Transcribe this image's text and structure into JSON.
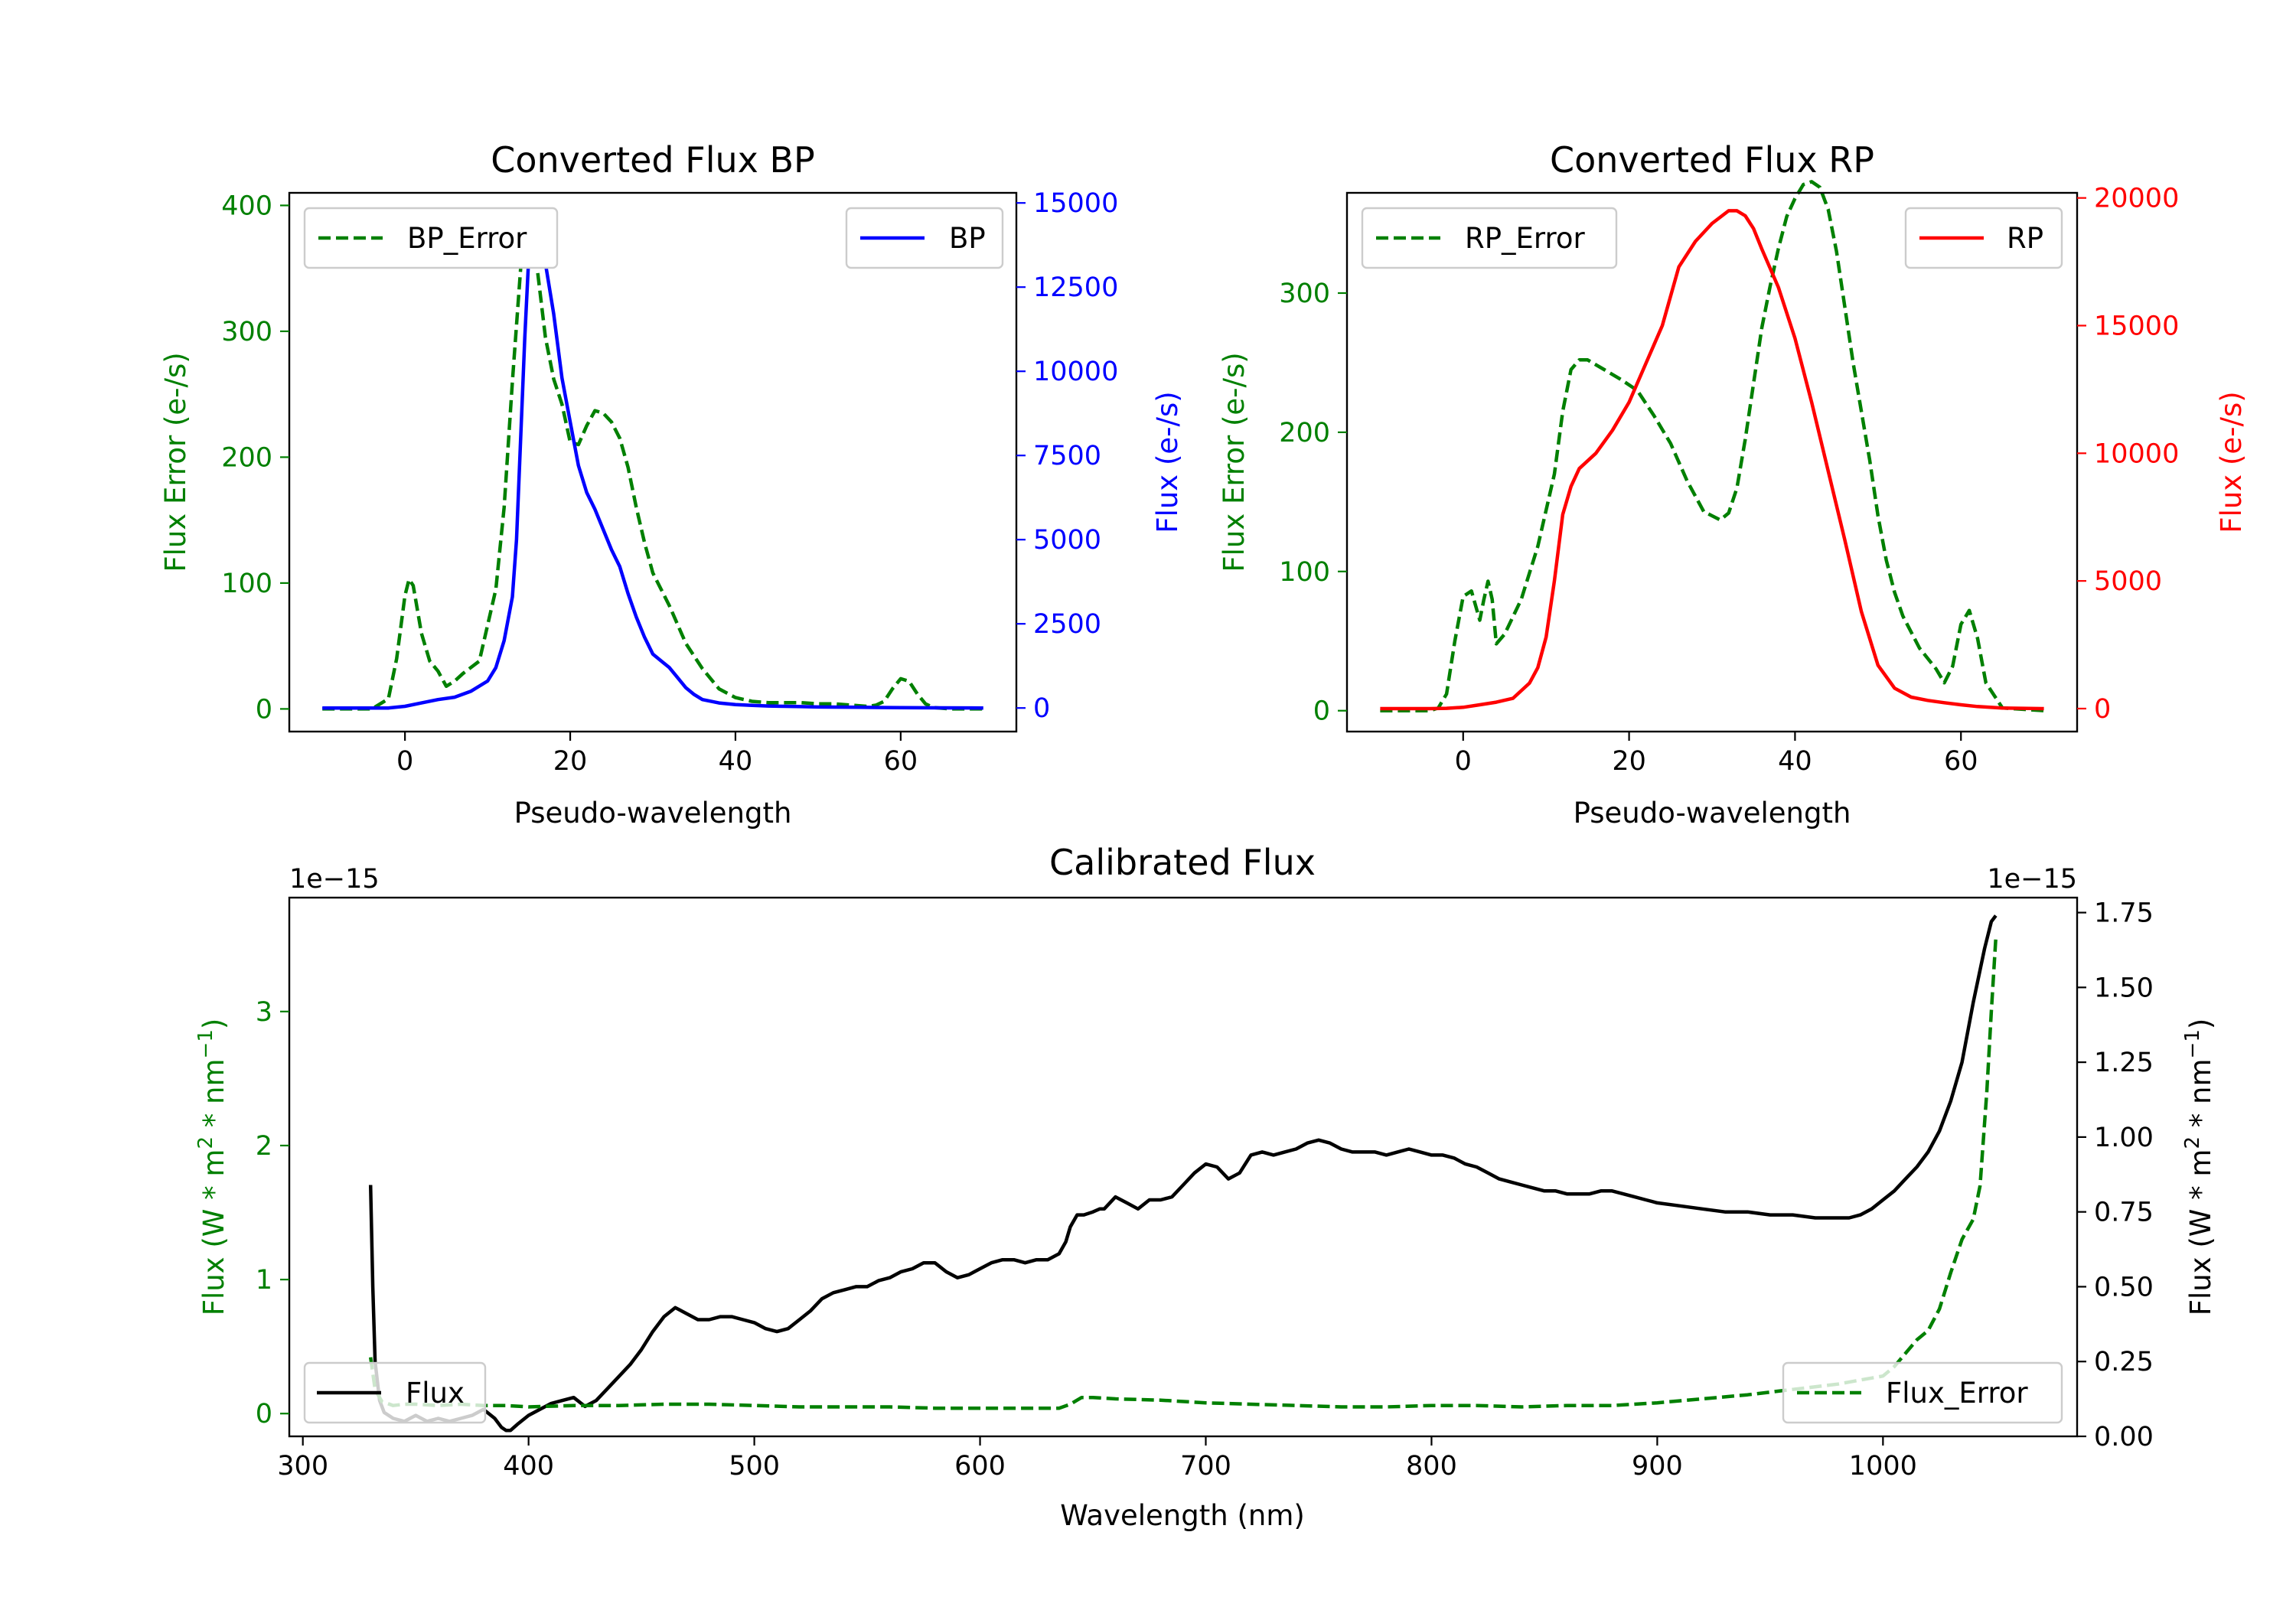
{
  "chart_data": [
    {
      "id": "bp",
      "type": "line",
      "title": "Converted Flux BP",
      "xlabel": "Pseudo-wavelength",
      "ylabel_left": "Flux Error (e-/s)",
      "ylabel_right": "Flux (e-/s)",
      "xlim": [
        -14,
        74
      ],
      "ylim_left": [
        -18,
        410
      ],
      "ylim_right": [
        -700,
        15300
      ],
      "xticks": [
        0,
        20,
        40,
        60
      ],
      "xtick_labels": [
        "0",
        "20",
        "40",
        "60"
      ],
      "yticks_left": [
        0,
        100,
        200,
        300,
        400
      ],
      "ytick_labels_left": [
        "0",
        "100",
        "200",
        "300",
        "400"
      ],
      "yticks_right": [
        0,
        2500,
        5000,
        7500,
        10000,
        12500,
        15000
      ],
      "ytick_labels_right": [
        "0",
        "2500",
        "5000",
        "7500",
        "10000",
        "12500",
        "15000"
      ],
      "left_axis_color": "#008000",
      "right_axis_color": "#0000ff",
      "series": [
        {
          "name": "BP_Error",
          "axis": "left",
          "color": "#008000",
          "style": "dashed",
          "x": [
            -10,
            -4,
            -2,
            -1,
            0,
            0.5,
            1,
            2,
            3,
            4,
            5,
            6,
            7,
            9,
            11,
            12,
            13,
            14,
            15,
            15.5,
            16,
            17,
            18,
            19,
            20,
            21,
            22,
            23,
            24,
            25,
            26,
            27,
            28,
            29,
            30,
            32,
            34,
            36,
            38,
            40,
            42,
            44,
            46,
            48,
            50,
            52,
            54,
            56,
            57,
            58,
            59,
            60,
            61,
            62,
            63,
            64,
            66,
            68,
            70
          ],
          "values": [
            0,
            0,
            8,
            40,
            90,
            103,
            98,
            60,
            38,
            30,
            18,
            22,
            28,
            38,
            95,
            160,
            260,
            350,
            388,
            378,
            350,
            295,
            262,
            242,
            212,
            210,
            225,
            237,
            235,
            228,
            215,
            192,
            160,
            132,
            108,
            82,
            52,
            32,
            16,
            9,
            6,
            5,
            5,
            5,
            4,
            4,
            3,
            2,
            3,
            6,
            16,
            24,
            22,
            12,
            4,
            1,
            0,
            0,
            0
          ]
        },
        {
          "name": "BP",
          "axis": "right",
          "color": "#0000ff",
          "style": "solid",
          "x": [
            -10,
            -2,
            0,
            2,
            4,
            6,
            8,
            10,
            11,
            12,
            13,
            13.5,
            14,
            14.5,
            15,
            15.5,
            16,
            17,
            18,
            19,
            20,
            21,
            22,
            23,
            24,
            25,
            26,
            27,
            28,
            29,
            30,
            31,
            32,
            33,
            34,
            35,
            36,
            38,
            40,
            42,
            44,
            46,
            48,
            50,
            55,
            60,
            65,
            70
          ],
          "values": [
            0,
            0,
            50,
            150,
            250,
            320,
            500,
            800,
            1200,
            2000,
            3300,
            5000,
            8000,
            11000,
            13500,
            14700,
            14400,
            13200,
            11700,
            9800,
            8500,
            7200,
            6400,
            5900,
            5300,
            4700,
            4200,
            3400,
            2700,
            2100,
            1600,
            1400,
            1200,
            900,
            600,
            400,
            250,
            150,
            100,
            80,
            60,
            50,
            40,
            30,
            20,
            10,
            5,
            0
          ]
        }
      ],
      "legend": [
        {
          "label": "BP_Error",
          "position": "top-left"
        },
        {
          "label": "BP",
          "position": "top-right"
        }
      ]
    },
    {
      "id": "rp",
      "type": "line",
      "title": "Converted Flux RP",
      "xlabel": "Pseudo-wavelength",
      "ylabel_left": "Flux Error (e-/s)",
      "ylabel_right": "Flux (e-/s)",
      "xlim": [
        -14,
        74
      ],
      "ylim_left": [
        -15,
        372
      ],
      "ylim_right": [
        -900,
        20200
      ],
      "xticks": [
        0,
        20,
        40,
        60
      ],
      "xtick_labels": [
        "0",
        "20",
        "40",
        "60"
      ],
      "yticks_left": [
        0,
        100,
        200,
        300
      ],
      "ytick_labels_left": [
        "0",
        "100",
        "200",
        "300"
      ],
      "yticks_right": [
        0,
        5000,
        10000,
        15000,
        20000
      ],
      "ytick_labels_right": [
        "0",
        "5000",
        "10000",
        "15000",
        "20000"
      ],
      "left_axis_color": "#008000",
      "right_axis_color": "#ff0000",
      "series": [
        {
          "name": "RP_Error",
          "axis": "left",
          "color": "#008000",
          "style": "dashed",
          "x": [
            -10,
            -4,
            -3,
            -2,
            -1,
            0,
            1,
            2,
            2.5,
            3,
            3.5,
            4,
            5,
            7,
            9,
            11,
            12,
            13,
            14,
            15,
            17,
            19,
            21,
            23,
            25,
            27,
            29,
            31,
            32,
            33,
            34,
            35,
            36,
            37,
            38,
            39,
            40,
            41,
            42,
            43,
            44,
            45,
            46,
            47,
            48,
            49,
            50,
            51,
            52,
            53,
            55,
            57,
            58,
            59,
            60,
            61,
            62,
            63,
            65,
            70
          ],
          "values": [
            0,
            0,
            2,
            12,
            50,
            82,
            86,
            65,
            80,
            93,
            80,
            48,
            55,
            80,
            118,
            170,
            215,
            245,
            252,
            252,
            245,
            238,
            230,
            212,
            192,
            165,
            143,
            137,
            142,
            160,
            195,
            235,
            275,
            305,
            332,
            355,
            368,
            378,
            380,
            376,
            360,
            330,
            290,
            250,
            215,
            180,
            140,
            108,
            85,
            68,
            45,
            30,
            20,
            32,
            62,
            72,
            52,
            20,
            2,
            0
          ]
        },
        {
          "name": "RP",
          "axis": "right",
          "color": "#ff0000",
          "style": "solid",
          "x": [
            -10,
            -4,
            -2,
            0,
            2,
            4,
            6,
            8,
            9,
            10,
            11,
            12,
            13,
            14,
            16,
            18,
            20,
            22,
            24,
            26,
            28,
            30,
            32,
            33,
            34,
            35,
            36,
            38,
            40,
            42,
            44,
            46,
            48,
            50,
            52,
            54,
            56,
            58,
            60,
            62,
            65,
            70
          ],
          "values": [
            0,
            0,
            10,
            50,
            150,
            250,
            400,
            1000,
            1600,
            2800,
            5000,
            7600,
            8700,
            9400,
            10000,
            10900,
            12000,
            13500,
            15000,
            17300,
            18300,
            19000,
            19500,
            19500,
            19300,
            18800,
            18000,
            16500,
            14500,
            12000,
            9300,
            6600,
            3800,
            1700,
            800,
            450,
            320,
            230,
            150,
            80,
            20,
            0
          ]
        }
      ],
      "legend": [
        {
          "label": "RP_Error",
          "position": "top-left"
        },
        {
          "label": "RP",
          "position": "top-right"
        }
      ]
    },
    {
      "id": "cal",
      "type": "line",
      "title": "Calibrated Flux",
      "xlabel": "Wavelength (nm)",
      "ylabel_left_parts": [
        "Flux (W * m",
        "2",
        " * nm",
        "−1",
        ")"
      ],
      "ylabel_right_parts": [
        "Flux (W * m",
        "2",
        " * nm",
        "−1",
        ")"
      ],
      "offset_left": "1e−15",
      "offset_right": "1e−15",
      "xlim": [
        294,
        1086
      ],
      "ylim_left": [
        -0.17,
        3.85
      ],
      "ylim_right": [
        0,
        1.8
      ],
      "xticks": [
        300,
        400,
        500,
        600,
        700,
        800,
        900,
        1000
      ],
      "xtick_labels": [
        "300",
        "400",
        "500",
        "600",
        "700",
        "800",
        "900",
        "1000"
      ],
      "yticks_left": [
        0,
        1,
        2,
        3
      ],
      "ytick_labels_left": [
        "0",
        "1",
        "2",
        "3"
      ],
      "yticks_right": [
        0,
        0.25,
        0.5,
        0.75,
        1.0,
        1.25,
        1.5,
        1.75
      ],
      "ytick_labels_right": [
        "0.00",
        "0.25",
        "0.50",
        "0.75",
        "1.00",
        "1.25",
        "1.50",
        "1.75"
      ],
      "left_axis_color": "#008000",
      "right_axis_color": "#000000",
      "series": [
        {
          "name": "Flux",
          "axis": "right",
          "color": "#000000",
          "style": "solid",
          "x": [
            330,
            331,
            332,
            334,
            336,
            340,
            345,
            350,
            355,
            360,
            365,
            370,
            375,
            380,
            385,
            388,
            390,
            392,
            395,
            400,
            405,
            410,
            415,
            420,
            425,
            430,
            435,
            440,
            445,
            450,
            455,
            460,
            465,
            470,
            475,
            480,
            485,
            490,
            495,
            500,
            505,
            510,
            515,
            520,
            525,
            530,
            535,
            540,
            545,
            550,
            555,
            560,
            565,
            570,
            575,
            580,
            585,
            590,
            595,
            600,
            605,
            610,
            615,
            620,
            625,
            630,
            635,
            638,
            640,
            643,
            646,
            650,
            653,
            655,
            660,
            665,
            670,
            675,
            680,
            685,
            690,
            695,
            700,
            705,
            710,
            715,
            720,
            725,
            730,
            735,
            740,
            745,
            750,
            755,
            760,
            765,
            770,
            775,
            780,
            785,
            790,
            795,
            800,
            805,
            810,
            815,
            820,
            825,
            830,
            835,
            840,
            845,
            850,
            855,
            860,
            865,
            870,
            875,
            880,
            885,
            890,
            895,
            900,
            910,
            920,
            930,
            940,
            950,
            960,
            970,
            980,
            985,
            990,
            995,
            1000,
            1005,
            1010,
            1015,
            1020,
            1025,
            1030,
            1035,
            1040,
            1045,
            1048,
            1050
          ],
          "values": [
            0.84,
            0.5,
            0.25,
            0.12,
            0.08,
            0.06,
            0.05,
            0.07,
            0.05,
            0.06,
            0.05,
            0.06,
            0.07,
            0.09,
            0.06,
            0.03,
            0.02,
            0.02,
            0.04,
            0.07,
            0.09,
            0.11,
            0.12,
            0.13,
            0.1,
            0.12,
            0.16,
            0.2,
            0.24,
            0.29,
            0.35,
            0.4,
            0.43,
            0.41,
            0.39,
            0.39,
            0.4,
            0.4,
            0.39,
            0.38,
            0.36,
            0.35,
            0.36,
            0.39,
            0.42,
            0.46,
            0.48,
            0.49,
            0.5,
            0.5,
            0.52,
            0.53,
            0.55,
            0.56,
            0.58,
            0.58,
            0.55,
            0.53,
            0.54,
            0.56,
            0.58,
            0.59,
            0.59,
            0.58,
            0.59,
            0.59,
            0.61,
            0.65,
            0.7,
            0.74,
            0.74,
            0.75,
            0.76,
            0.76,
            0.8,
            0.78,
            0.76,
            0.79,
            0.79,
            0.8,
            0.84,
            0.88,
            0.91,
            0.9,
            0.86,
            0.88,
            0.94,
            0.95,
            0.94,
            0.95,
            0.96,
            0.98,
            0.99,
            0.98,
            0.96,
            0.95,
            0.95,
            0.95,
            0.94,
            0.95,
            0.96,
            0.95,
            0.94,
            0.94,
            0.93,
            0.91,
            0.9,
            0.88,
            0.86,
            0.85,
            0.84,
            0.83,
            0.82,
            0.82,
            0.81,
            0.81,
            0.81,
            0.82,
            0.82,
            0.81,
            0.8,
            0.79,
            0.78,
            0.77,
            0.76,
            0.75,
            0.75,
            0.74,
            0.74,
            0.73,
            0.73,
            0.73,
            0.74,
            0.76,
            0.79,
            0.82,
            0.86,
            0.9,
            0.95,
            1.02,
            1.12,
            1.25,
            1.45,
            1.63,
            1.72,
            1.74
          ]
        },
        {
          "name": "Flux_Error",
          "axis": "left",
          "color": "#008000",
          "style": "dashed",
          "x": [
            330,
            332,
            335,
            340,
            345,
            350,
            360,
            370,
            380,
            390,
            400,
            420,
            440,
            460,
            480,
            500,
            520,
            540,
            560,
            580,
            600,
            620,
            635,
            640,
            645,
            650,
            660,
            680,
            700,
            720,
            740,
            760,
            780,
            800,
            820,
            840,
            860,
            880,
            900,
            920,
            940,
            960,
            980,
            990,
            1000,
            1005,
            1010,
            1015,
            1020,
            1025,
            1030,
            1035,
            1040,
            1043,
            1046,
            1048,
            1050
          ],
          "values": [
            0.42,
            0.18,
            0.09,
            0.06,
            0.07,
            0.07,
            0.06,
            0.07,
            0.06,
            0.06,
            0.05,
            0.06,
            0.06,
            0.07,
            0.07,
            0.06,
            0.05,
            0.05,
            0.05,
            0.04,
            0.04,
            0.04,
            0.04,
            0.07,
            0.12,
            0.12,
            0.11,
            0.1,
            0.08,
            0.07,
            0.06,
            0.05,
            0.05,
            0.06,
            0.06,
            0.05,
            0.06,
            0.06,
            0.08,
            0.11,
            0.14,
            0.18,
            0.22,
            0.25,
            0.28,
            0.35,
            0.45,
            0.55,
            0.62,
            0.78,
            1.05,
            1.3,
            1.45,
            1.7,
            2.4,
            3.0,
            3.55
          ]
        }
      ],
      "legend": [
        {
          "label": "Flux",
          "position": "lower-left"
        },
        {
          "label": "Flux_Error",
          "position": "lower-right"
        }
      ]
    }
  ]
}
